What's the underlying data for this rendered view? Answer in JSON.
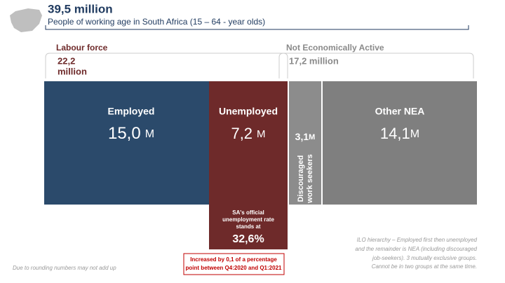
{
  "header": {
    "title": "39,5 million",
    "subtitle": "People of working age in South Africa (15 – 64 - year olds)"
  },
  "labour_force": {
    "label": "Labour force",
    "value_lines": [
      "22,2",
      "million"
    ]
  },
  "nea": {
    "label": "Not Economically Active",
    "value": "17,2 million"
  },
  "blocks": [
    {
      "label": "Employed",
      "value": "15,0",
      "unit": "M"
    },
    {
      "label": "Unemployed",
      "value": "7,2",
      "unit": "M"
    },
    {
      "label_lines": [
        "Discouraged",
        "work seekers"
      ],
      "value": "3,1",
      "unit": "M"
    },
    {
      "label": "Other NEA",
      "value": "14,1",
      "unit": "M"
    }
  ],
  "unemployment": {
    "note_lines": [
      "SA's official",
      "unemployment rate",
      "stands at"
    ],
    "rate": "32,6%"
  },
  "change_note_lines": [
    "Increased by 0,1 of a percentage",
    "point between Q4:2020 and Q1:2021"
  ],
  "footnote": "Due to rounding numbers may not add up",
  "ilo_note_lines": [
    "ILO hierarchy – Employed first then unemployed",
    "and the remainder is NEA (including discouraged",
    "job-seekers). 3 mutually exclusive groups.",
    "Cannot be in two groups at the same time."
  ]
}
